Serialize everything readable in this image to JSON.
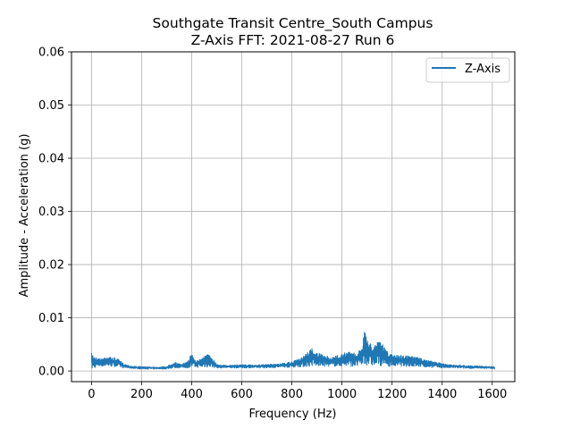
{
  "chart_data": {
    "type": "line",
    "title_line1": "Southgate Transit Centre_South Campus",
    "title_line2": "Z-Axis FFT: 2021-08-27 Run 6",
    "xlabel": "Frequency (Hz)",
    "ylabel": "Amplitude - Acceleration (g)",
    "xlim": [
      -80,
      1690
    ],
    "ylim": [
      -0.002,
      0.06
    ],
    "x_ticks": [
      0,
      200,
      400,
      600,
      800,
      1000,
      1200,
      1400,
      1600
    ],
    "x_tick_labels": [
      "0",
      "200",
      "400",
      "600",
      "800",
      "1000",
      "1200",
      "1400",
      "1600"
    ],
    "y_ticks": [
      0.0,
      0.01,
      0.02,
      0.03,
      0.04,
      0.05,
      0.06
    ],
    "y_tick_labels": [
      "0.00",
      "0.01",
      "0.02",
      "0.03",
      "0.04",
      "0.05",
      "0.06"
    ],
    "grid": true,
    "legend_position": "top-right",
    "series": [
      {
        "name": "Z-Axis",
        "color": "#1f77b4",
        "envelope": {
          "x": [
            0,
            10,
            20,
            40,
            60,
            80,
            100,
            130,
            160,
            200,
            250,
            300,
            330,
            350,
            380,
            400,
            420,
            440,
            460,
            480,
            500,
            540,
            600,
            650,
            700,
            750,
            800,
            830,
            860,
            880,
            900,
            930,
            960,
            1000,
            1040,
            1060,
            1080,
            1090,
            1100,
            1120,
            1140,
            1160,
            1180,
            1200,
            1250,
            1300,
            1350,
            1400,
            1450,
            1500,
            1550,
            1600,
            1610
          ],
          "y_max": [
            0.0034,
            0.003,
            0.0026,
            0.0024,
            0.0029,
            0.0026,
            0.0025,
            0.0014,
            0.001,
            0.0009,
            0.0008,
            0.0009,
            0.0018,
            0.0014,
            0.0017,
            0.0034,
            0.002,
            0.0026,
            0.0033,
            0.0028,
            0.0014,
            0.0011,
            0.0013,
            0.0012,
            0.0013,
            0.0014,
            0.0018,
            0.0024,
            0.0035,
            0.0044,
            0.0035,
            0.003,
            0.0026,
            0.0034,
            0.0038,
            0.0032,
            0.005,
            0.0075,
            0.0064,
            0.0048,
            0.0058,
            0.0052,
            0.0038,
            0.0031,
            0.003,
            0.0027,
            0.002,
            0.0015,
            0.0012,
            0.0011,
            0.001,
            0.0009,
            0.0007
          ],
          "y_min": [
            0.0002,
            0.0004,
            0.0007,
            0.0008,
            0.0008,
            0.0008,
            0.0007,
            0.0005,
            0.0004,
            0.0003,
            0.0003,
            0.0003,
            0.0005,
            0.0005,
            0.0005,
            0.0006,
            0.0006,
            0.0006,
            0.0006,
            0.0006,
            0.0005,
            0.0005,
            0.0005,
            0.0005,
            0.0005,
            0.0006,
            0.0006,
            0.0007,
            0.0007,
            0.0008,
            0.0008,
            0.0008,
            0.0008,
            0.0008,
            0.0008,
            0.0008,
            0.0009,
            0.001,
            0.001,
            0.0009,
            0.0009,
            0.0009,
            0.0008,
            0.0008,
            0.0008,
            0.0007,
            0.0006,
            0.0005,
            0.0005,
            0.0004,
            0.0004,
            0.0004,
            0.0003
          ]
        }
      }
    ]
  }
}
